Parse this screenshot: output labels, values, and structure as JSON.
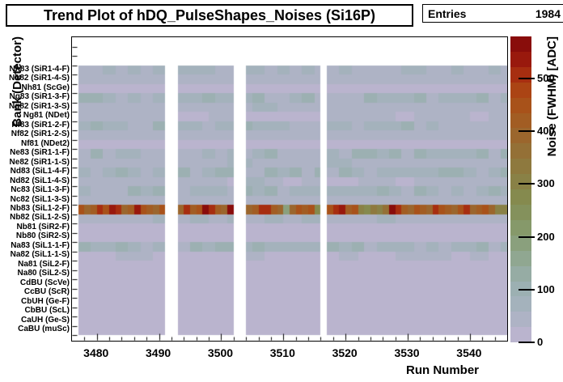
{
  "title": "Trend Plot of hDQ_PulseShapes_Noises (Si16P)",
  "stats": {
    "label": "Entries",
    "value": "1984"
  },
  "axes": {
    "x_title": "Run Number",
    "y_title": "Bank (Detector)",
    "z_title": "Noise (FWHM) [ADC]",
    "x_ticks": [
      3480,
      3490,
      3500,
      3510,
      3520,
      3530,
      3540
    ],
    "z_ticks": [
      0,
      100,
      200,
      300,
      400,
      500
    ]
  },
  "chart_data": {
    "type": "heatmap",
    "title": "Trend Plot of hDQ_PulseShapes_Noises (Si16P)",
    "xlabel": "Run Number",
    "ylabel": "Bank (Detector)",
    "zlabel": "Noise (FWHM) [ADC]",
    "entries": 1984,
    "x_range": [
      3476,
      3546
    ],
    "first_run": 3477,
    "last_run": 3545,
    "missing_runs": [
      3491,
      3492,
      3502,
      3503,
      3516
    ],
    "z_range": [
      0,
      580
    ],
    "empty_top_rows": 3,
    "grid": false,
    "palette": [
      "#bab4ce",
      "#aeb3c5",
      "#a4b2bc",
      "#9cb0b2",
      "#96aca4",
      "#90a791",
      "#8aa07d",
      "#86996a",
      "#84915c",
      "#858a4e",
      "#898146",
      "#8e793e",
      "#947036",
      "#9b662d",
      "#a25d23",
      "#a8521a",
      "#ab4414",
      "#a72e10",
      "#99190d",
      "#890d0b"
    ],
    "rows": [
      {
        "label": "Nh83 (SiR1-4-F)",
        "base": 62,
        "jitter": 28,
        "block": 2
      },
      {
        "label": "Nh82 (SiR1-4-S)",
        "base": 45,
        "jitter": 12,
        "block": 4
      },
      {
        "label": "Nh81 (ScGe)",
        "base": 12,
        "jitter": 8,
        "block": 3
      },
      {
        "label": "Ng83 (SiR1-3-F)",
        "base": 72,
        "jitter": 32,
        "block": 2
      },
      {
        "label": "Ng82 (SiR1-3-S)",
        "base": 45,
        "jitter": 14,
        "block": 4
      },
      {
        "label": "Ng81 (NDet)",
        "base": 28,
        "jitter": 14,
        "block": 3
      },
      {
        "label": "Nf83 (SiR1-2-F)",
        "base": 72,
        "jitter": 32,
        "block": 2
      },
      {
        "label": "Nf82 (SiR1-2-S)",
        "base": 45,
        "jitter": 14,
        "block": 4
      },
      {
        "label": "Nf81 (NDet2)",
        "base": 14,
        "jitter": 8,
        "block": 3
      },
      {
        "label": "Ne83 (SiR1-1-F)",
        "base": 74,
        "jitter": 33,
        "block": 2
      },
      {
        "label": "Ne82 (SiR1-1-S)",
        "base": 46,
        "jitter": 14,
        "block": 4
      },
      {
        "label": "Nd83 (SiL1-4-F)",
        "base": 74,
        "jitter": 34,
        "block": 2
      },
      {
        "label": "Nd82 (SiL1-4-S)",
        "base": 40,
        "jitter": 20,
        "block": 3
      },
      {
        "label": "Nc83 (SiL1-3-F)",
        "base": 70,
        "jitter": 32,
        "block": 2
      },
      {
        "label": "Nc82 (SiL1-3-S)",
        "base": 45,
        "jitter": 13,
        "block": 4
      },
      {
        "label": "Nb83 (SiL1-2-F)",
        "values": [
          450,
          390,
          425,
          500,
          450,
          535,
          505,
          390,
          425,
          535,
          450,
          420,
          390,
          450,
          null,
          null,
          390,
          505,
          430,
          455,
          560,
          505,
          420,
          390,
          560,
          null,
          null,
          390,
          425,
          505,
          505,
          420,
          390,
          190,
          390,
          450,
          420,
          450,
          280,
          null,
          450,
          505,
          535,
          420,
          450,
          300,
          280,
          330,
          300,
          360,
          560,
          505,
          420,
          390,
          450,
          420,
          390,
          505,
          450,
          420,
          390,
          450,
          505,
          390,
          425,
          450,
          390,
          300,
          300
        ]
      },
      {
        "label": "Nb82 (SiL1-2-S)",
        "base": 50,
        "jitter": 18,
        "block": 3
      },
      {
        "label": "Nb81 (SiR2-F)",
        "base": 12,
        "jitter": 8,
        "block": 3
      },
      {
        "label": "Nb80 (SiR2-S)",
        "base": 12,
        "jitter": 8,
        "block": 3
      },
      {
        "label": "Na83 (SiL1-1-F)",
        "base": 72,
        "jitter": 32,
        "block": 2
      },
      {
        "label": "Na82 (SiL1-1-S)",
        "base": 26,
        "jitter": 13,
        "block": 3
      },
      {
        "label": "Na81 (SiL2-F)",
        "base": 10,
        "jitter": 6,
        "block": 3
      },
      {
        "label": "Na80 (SiL2-S)",
        "base": 10,
        "jitter": 6,
        "block": 3
      },
      {
        "label": "CdBU (ScVe)",
        "base": 10,
        "jitter": 5,
        "block": 4
      },
      {
        "label": "CcBU (ScR)",
        "base": 10,
        "jitter": 5,
        "block": 4
      },
      {
        "label": "CbUH (Ge-F)",
        "base": 10,
        "jitter": 5,
        "block": 4
      },
      {
        "label": "CbBU (ScL)",
        "base": 10,
        "jitter": 5,
        "block": 4
      },
      {
        "label": "CaUH (Ge-S)",
        "base": 10,
        "jitter": 5,
        "block": 4
      },
      {
        "label": "CaBU (muSc)",
        "base": 10,
        "jitter": 5,
        "block": 4
      }
    ]
  }
}
